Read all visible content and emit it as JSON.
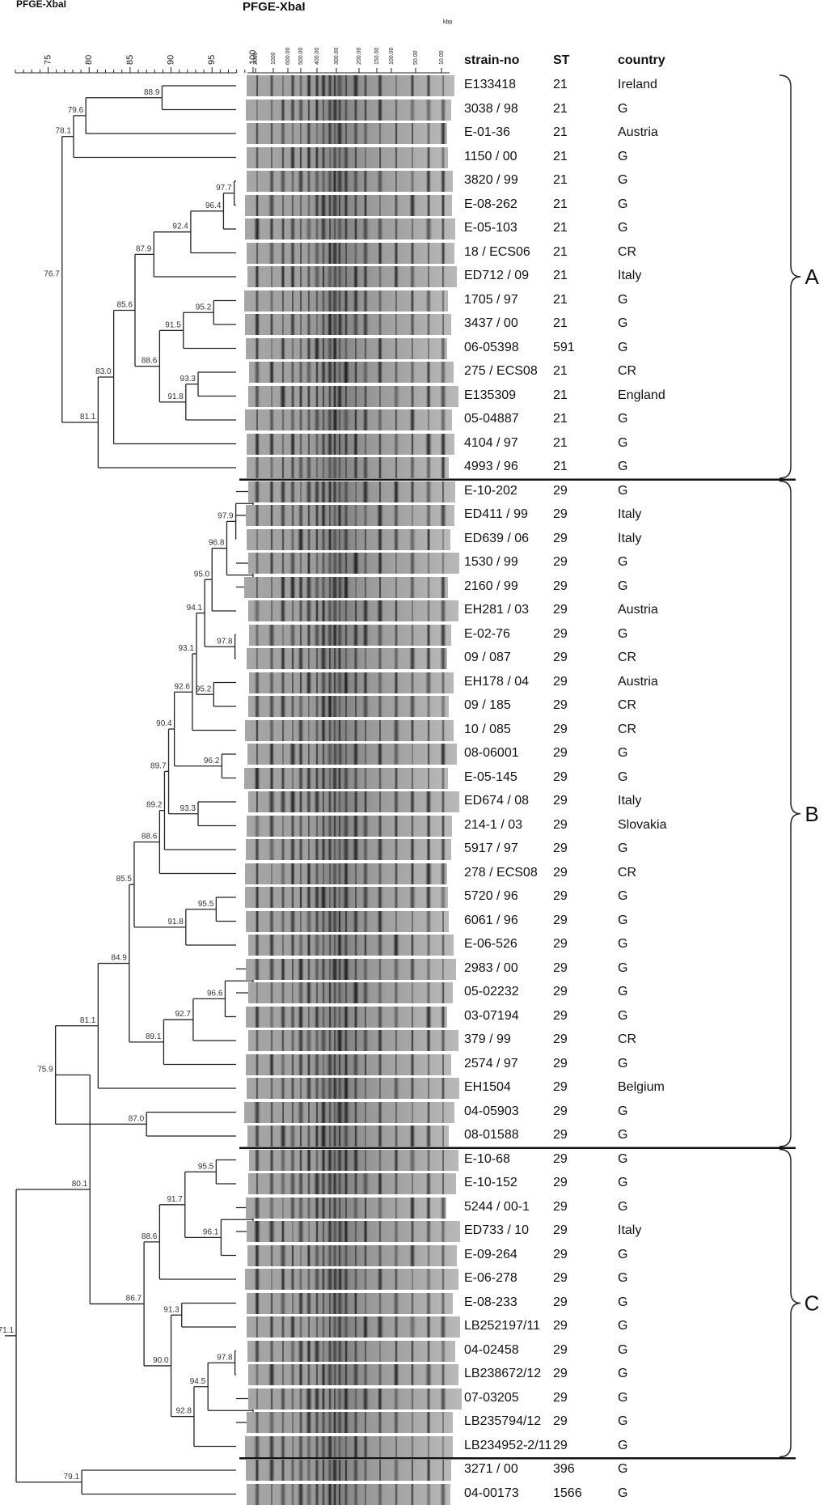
{
  "titles": {
    "corner": "PFGE-XbaI",
    "gel": "PFGE-XbaI",
    "kbp": "kbp"
  },
  "columns": {
    "strain": "strain-no",
    "st": "ST",
    "country": "country"
  },
  "scale_ticks": [
    "75",
    "80",
    "85",
    "90",
    "95",
    "100"
  ],
  "size_markers": [
    "2000",
    "1000",
    "600.00",
    "500.00",
    "400.00",
    "300.00",
    "200.00",
    "150.00",
    "100.00",
    "50.00",
    "10.00"
  ],
  "rows": [
    {
      "strain": "E133418",
      "st": "21",
      "country": "Ireland"
    },
    {
      "strain": "3038 / 98",
      "st": "21",
      "country": "G"
    },
    {
      "strain": "E-01-36",
      "st": "21",
      "country": "Austria"
    },
    {
      "strain": "1150 / 00",
      "st": "21",
      "country": "G"
    },
    {
      "strain": "3820 / 99",
      "st": "21",
      "country": "G"
    },
    {
      "strain": "E-08-262",
      "st": "21",
      "country": "G"
    },
    {
      "strain": "E-05-103",
      "st": "21",
      "country": "G"
    },
    {
      "strain": "18 / ECS06",
      "st": "21",
      "country": "CR"
    },
    {
      "strain": "ED712 / 09",
      "st": "21",
      "country": "Italy"
    },
    {
      "strain": "1705 / 97",
      "st": "21",
      "country": "G"
    },
    {
      "strain": "3437 / 00",
      "st": "21",
      "country": "G"
    },
    {
      "strain": "06-05398",
      "st": "591",
      "country": "G"
    },
    {
      "strain": "275 / ECS08",
      "st": "21",
      "country": "CR"
    },
    {
      "strain": "E135309",
      "st": "21",
      "country": "England"
    },
    {
      "strain": "05-04887",
      "st": "21",
      "country": "G"
    },
    {
      "strain": "4104 / 97",
      "st": "21",
      "country": "G"
    },
    {
      "strain": "4993 / 96",
      "st": "21",
      "country": "G"
    },
    {
      "strain": "E-10-202",
      "st": "29",
      "country": "G"
    },
    {
      "strain": "ED411 / 99",
      "st": "29",
      "country": "Italy"
    },
    {
      "strain": "ED639 / 06",
      "st": "29",
      "country": "Italy"
    },
    {
      "strain": "1530 / 99",
      "st": "29",
      "country": "G"
    },
    {
      "strain": "2160 / 99",
      "st": "29",
      "country": "G"
    },
    {
      "strain": "EH281 / 03",
      "st": "29",
      "country": "Austria"
    },
    {
      "strain": "E-02-76",
      "st": "29",
      "country": "G"
    },
    {
      "strain": "09 / 087",
      "st": "29",
      "country": "CR"
    },
    {
      "strain": "EH178 / 04",
      "st": "29",
      "country": "Austria"
    },
    {
      "strain": "09 / 185",
      "st": "29",
      "country": "CR"
    },
    {
      "strain": "10 / 085",
      "st": "29",
      "country": "CR"
    },
    {
      "strain": "08-06001",
      "st": "29",
      "country": "G"
    },
    {
      "strain": "E-05-145",
      "st": "29",
      "country": "G"
    },
    {
      "strain": "ED674 / 08",
      "st": "29",
      "country": "Italy"
    },
    {
      "strain": "214-1 / 03",
      "st": "29",
      "country": "Slovakia"
    },
    {
      "strain": "5917 / 97",
      "st": "29",
      "country": "G"
    },
    {
      "strain": "278 / ECS08",
      "st": "29",
      "country": "CR"
    },
    {
      "strain": "5720 / 96",
      "st": "29",
      "country": "G"
    },
    {
      "strain": "6061 / 96",
      "st": "29",
      "country": "G"
    },
    {
      "strain": "E-06-526",
      "st": "29",
      "country": "G"
    },
    {
      "strain": "2983 / 00",
      "st": "29",
      "country": "G"
    },
    {
      "strain": "05-02232",
      "st": "29",
      "country": "G"
    },
    {
      "strain": "03-07194",
      "st": "29",
      "country": "G"
    },
    {
      "strain": "379 / 99",
      "st": "29",
      "country": "CR"
    },
    {
      "strain": "2574 / 97",
      "st": "29",
      "country": "G"
    },
    {
      "strain": "EH1504",
      "st": "29",
      "country": "Belgium"
    },
    {
      "strain": "04-05903",
      "st": "29",
      "country": "G"
    },
    {
      "strain": "08-01588",
      "st": "29",
      "country": "G"
    },
    {
      "strain": "E-10-68",
      "st": "29",
      "country": "G"
    },
    {
      "strain": "E-10-152",
      "st": "29",
      "country": "G"
    },
    {
      "strain": "5244 / 00-1",
      "st": "29",
      "country": "G"
    },
    {
      "strain": "ED733 / 10",
      "st": "29",
      "country": "Italy"
    },
    {
      "strain": "E-09-264",
      "st": "29",
      "country": "G"
    },
    {
      "strain": "E-06-278",
      "st": "29",
      "country": "G"
    },
    {
      "strain": "E-08-233",
      "st": "29",
      "country": "G"
    },
    {
      "strain": "LB252197/11",
      "st": "29",
      "country": "G"
    },
    {
      "strain": "04-02458",
      "st": "29",
      "country": "G"
    },
    {
      "strain": "LB238672/12",
      "st": "29",
      "country": "G"
    },
    {
      "strain": "07-03205",
      "st": "29",
      "country": "G"
    },
    {
      "strain": "LB235794/12",
      "st": "29",
      "country": "G"
    },
    {
      "strain": "LB234952-2/11",
      "st": "29",
      "country": "G"
    },
    {
      "strain": "3271 / 00",
      "st": "396",
      "country": "G"
    },
    {
      "strain": "04-00173",
      "st": "1566",
      "country": "G"
    }
  ],
  "clusters": [
    {
      "label": "A",
      "first": 0,
      "last": 16
    },
    {
      "label": "B",
      "first": 17,
      "last": 44
    },
    {
      "label": "C",
      "first": 45,
      "last": 57
    }
  ],
  "tree": [
    {
      "id": "n1",
      "a": 0,
      "b": 1,
      "sim": 88.9
    },
    {
      "id": "n2",
      "a": "n1",
      "b": 2,
      "sim": 79.6
    },
    {
      "id": "n3",
      "a": "n2",
      "b": 3,
      "sim": 78.1
    },
    {
      "id": "n4",
      "a": 4,
      "b": 5,
      "sim": 97.7
    },
    {
      "id": "n5",
      "a": "n4",
      "b": 6,
      "sim": 96.4
    },
    {
      "id": "n6",
      "a": "n5",
      "b": 7,
      "sim": 92.4
    },
    {
      "id": "n7",
      "a": "n6",
      "b": 8,
      "sim": 87.9
    },
    {
      "id": "n8",
      "a": 9,
      "b": 10,
      "sim": 95.2
    },
    {
      "id": "n9",
      "a": "n8",
      "b": 11,
      "sim": 91.5
    },
    {
      "id": "n10",
      "a": 12,
      "b": 13,
      "sim": 93.3
    },
    {
      "id": "n11",
      "a": "n10",
      "b": 14,
      "sim": 91.8
    },
    {
      "id": "n12",
      "a": "n9",
      "b": "n11",
      "sim": 88.6
    },
    {
      "id": "n13",
      "a": "n7",
      "b": "n12",
      "sim": 85.6
    },
    {
      "id": "n14",
      "a": "n13",
      "b": 15,
      "sim": 83.0
    },
    {
      "id": "n15",
      "a": "n14",
      "b": 16,
      "sim": 81.1
    },
    {
      "id": "n16",
      "a": "n3",
      "b": "n15",
      "sim": 76.7
    },
    {
      "id": "n17",
      "a": 17,
      "b": 18,
      "sim": 100
    },
    {
      "id": "n18",
      "a": "n17",
      "b": 19,
      "sim": 97.9
    },
    {
      "id": "n19",
      "a": 20,
      "b": 21,
      "sim": 100
    },
    {
      "id": "n20",
      "a": "n18",
      "b": "n19",
      "sim": 96.8
    },
    {
      "id": "n21",
      "a": "n20",
      "b": 22,
      "sim": 95.0
    },
    {
      "id": "n22",
      "a": 23,
      "b": 24,
      "sim": 97.8
    },
    {
      "id": "n23",
      "a": "n21",
      "b": "n22",
      "sim": 94.1
    },
    {
      "id": "n24",
      "a": 25,
      "b": 26,
      "sim": 95.2
    },
    {
      "id": "n25",
      "a": "n23",
      "b": "n24",
      "sim": 93.1
    },
    {
      "id": "n26",
      "a": "n25",
      "b": 27,
      "sim": 92.6
    },
    {
      "id": "n27",
      "a": 28,
      "b": 29,
      "sim": 96.2
    },
    {
      "id": "n28",
      "a": "n26",
      "b": "n27",
      "sim": 90.4
    },
    {
      "id": "n29",
      "a": 30,
      "b": 31,
      "sim": 93.3
    },
    {
      "id": "n30",
      "a": "n28",
      "b": "n29",
      "sim": 89.7
    },
    {
      "id": "n31",
      "a": "n30",
      "b": 32,
      "sim": 89.2
    },
    {
      "id": "n32",
      "a": "n31",
      "b": 33,
      "sim": 88.6
    },
    {
      "id": "n33",
      "a": 34,
      "b": 35,
      "sim": 95.5
    },
    {
      "id": "n34",
      "a": "n33",
      "b": 36,
      "sim": 91.8
    },
    {
      "id": "n35",
      "a": "n32",
      "b": "n34",
      "sim": 85.5
    },
    {
      "id": "n36",
      "a": 37,
      "b": 38,
      "sim": 100
    },
    {
      "id": "n37",
      "a": "n36",
      "b": 39,
      "sim": 96.6
    },
    {
      "id": "n38",
      "a": "n37",
      "b": 40,
      "sim": 92.7
    },
    {
      "id": "n39",
      "a": "n38",
      "b": 41,
      "sim": 89.1
    },
    {
      "id": "n40",
      "a": "n35",
      "b": "n39",
      "sim": 84.9
    },
    {
      "id": "n41",
      "a": "n40",
      "b": 42,
      "sim": 81.1
    },
    {
      "id": "n42",
      "a": 43,
      "b": 44,
      "sim": 87.0
    },
    {
      "id": "n43",
      "a": "n41",
      "b": "n42",
      "sim": 75.9
    },
    {
      "id": "n44",
      "a": 45,
      "b": 46,
      "sim": 95.5
    },
    {
      "id": "n45",
      "a": 47,
      "b": 48,
      "sim": 100
    },
    {
      "id": "n46",
      "a": "n45",
      "b": 49,
      "sim": 96.1
    },
    {
      "id": "n47",
      "a": "n44",
      "b": "n46",
      "sim": 91.7
    },
    {
      "id": "n48",
      "a": "n47",
      "b": 50,
      "sim": 88.6
    },
    {
      "id": "n49",
      "a": 51,
      "b": 52,
      "sim": 91.3
    },
    {
      "id": "n50",
      "a": 53,
      "b": 54,
      "sim": 97.8
    },
    {
      "id": "n51",
      "a": 55,
      "b": 56,
      "sim": 100
    },
    {
      "id": "n52",
      "a": "n50",
      "b": "n51",
      "sim": 94.5
    },
    {
      "id": "n53",
      "a": "n52",
      "b": 57,
      "sim": 92.8
    },
    {
      "id": "n54",
      "a": "n49",
      "b": "n53",
      "sim": 90.0
    },
    {
      "id": "n55",
      "a": "n48",
      "b": "n54",
      "sim": 86.7
    },
    {
      "id": "n56",
      "a": "n43",
      "b": "n55",
      "sim": 80.1
    },
    {
      "id": "n57",
      "a": 58,
      "b": 59,
      "sim": 79.1
    },
    {
      "id": "n58",
      "a": "n56",
      "b": "n57",
      "sim": 71.1
    }
  ],
  "hidden_labels": [
    "n17",
    "n19",
    "n36",
    "n45",
    "n51"
  ]
}
